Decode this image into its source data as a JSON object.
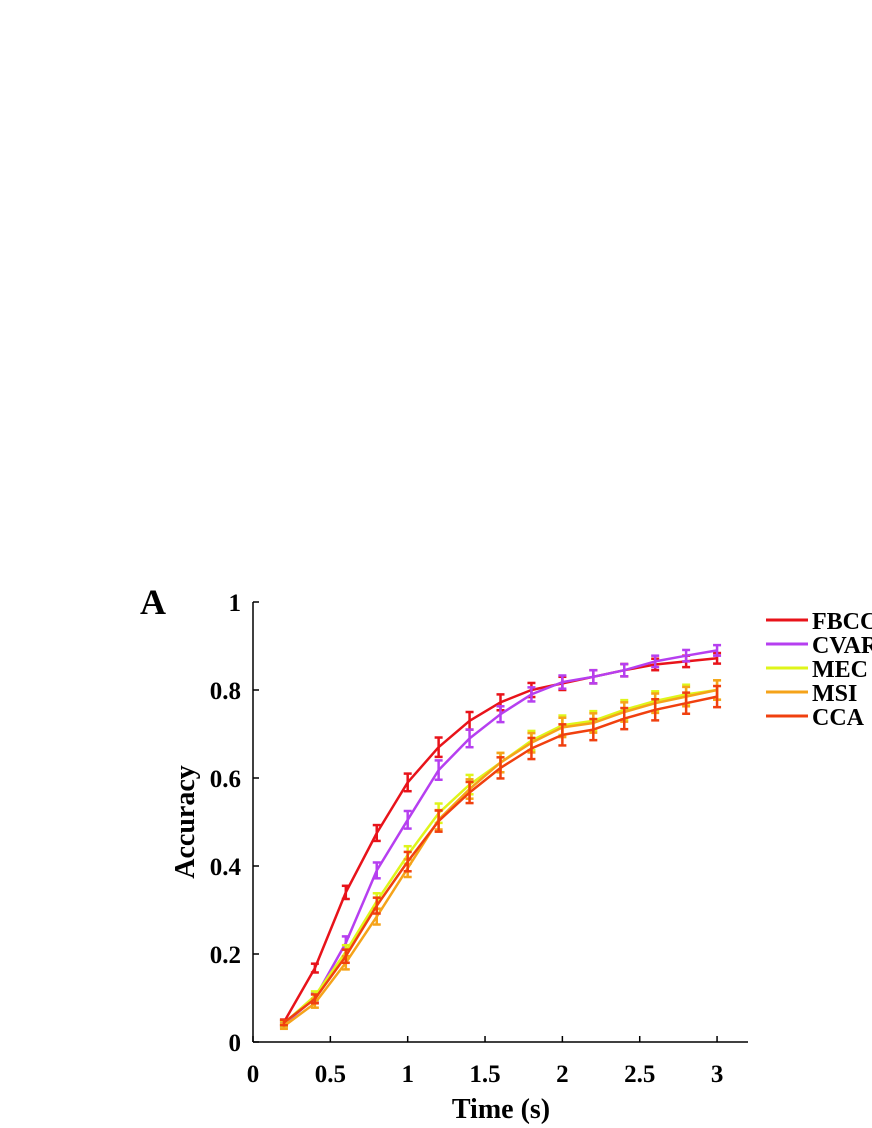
{
  "panel_label": "A",
  "chart_data": {
    "type": "line",
    "xlabel": "Time (s)",
    "ylabel": "Accuracy",
    "xlim": [
      0,
      3.2
    ],
    "ylim": [
      0,
      1
    ],
    "xticks": [
      0,
      0.5,
      1,
      1.5,
      2,
      2.5,
      3
    ],
    "xtick_labels": [
      "0",
      "0.5",
      "1",
      "1.5",
      "2",
      "2.5",
      "3"
    ],
    "yticks": [
      0,
      0.2,
      0.4,
      0.6,
      0.8,
      1
    ],
    "ytick_labels": [
      "0",
      "0.2",
      "0.4",
      "0.6",
      "0.8",
      "1"
    ],
    "grid": false,
    "legend_position": "right",
    "x": [
      0.2,
      0.4,
      0.6,
      0.8,
      1.0,
      1.2,
      1.4,
      1.6,
      1.8,
      2.0,
      2.2,
      2.4,
      2.6,
      2.8,
      3.0
    ],
    "series": [
      {
        "name": "FBCCA",
        "color": "#e8131a",
        "values": [
          0.045,
          0.168,
          0.34,
          0.475,
          0.59,
          0.67,
          0.73,
          0.772,
          0.8,
          0.815,
          0.83,
          0.845,
          0.858,
          0.865,
          0.872
        ],
        "errors": [
          0.006,
          0.01,
          0.015,
          0.018,
          0.02,
          0.022,
          0.02,
          0.018,
          0.016,
          0.015,
          0.015,
          0.014,
          0.013,
          0.013,
          0.012
        ]
      },
      {
        "name": "CVARS",
        "color": "#b63ff0",
        "values": [
          0.04,
          0.1,
          0.225,
          0.39,
          0.505,
          0.618,
          0.69,
          0.745,
          0.79,
          0.818,
          0.83,
          0.845,
          0.865,
          0.878,
          0.89
        ],
        "errors": [
          0.006,
          0.01,
          0.015,
          0.018,
          0.02,
          0.022,
          0.02,
          0.018,
          0.016,
          0.015,
          0.015,
          0.014,
          0.013,
          0.013,
          0.012
        ]
      },
      {
        "name": "MEC",
        "color": "#dff51a",
        "values": [
          0.042,
          0.105,
          0.205,
          0.32,
          0.425,
          0.52,
          0.585,
          0.635,
          0.685,
          0.72,
          0.73,
          0.755,
          0.775,
          0.79,
          0.8
        ],
        "errors": [
          0.006,
          0.01,
          0.015,
          0.018,
          0.02,
          0.022,
          0.022,
          0.022,
          0.022,
          0.022,
          0.022,
          0.022,
          0.022,
          0.022,
          0.022
        ]
      },
      {
        "name": "MSI",
        "color": "#f5a31a",
        "values": [
          0.036,
          0.088,
          0.18,
          0.285,
          0.395,
          0.505,
          0.575,
          0.635,
          0.68,
          0.715,
          0.725,
          0.75,
          0.77,
          0.785,
          0.8
        ],
        "errors": [
          0.006,
          0.01,
          0.015,
          0.018,
          0.02,
          0.022,
          0.022,
          0.022,
          0.022,
          0.022,
          0.022,
          0.022,
          0.022,
          0.022,
          0.022
        ]
      },
      {
        "name": "CCA",
        "color": "#f0400f",
        "values": [
          0.044,
          0.098,
          0.195,
          0.31,
          0.41,
          0.502,
          0.567,
          0.623,
          0.667,
          0.698,
          0.71,
          0.735,
          0.755,
          0.77,
          0.785
        ],
        "errors": [
          0.006,
          0.01,
          0.015,
          0.018,
          0.022,
          0.024,
          0.024,
          0.024,
          0.024,
          0.024,
          0.024,
          0.024,
          0.024,
          0.024,
          0.024
        ]
      }
    ]
  }
}
